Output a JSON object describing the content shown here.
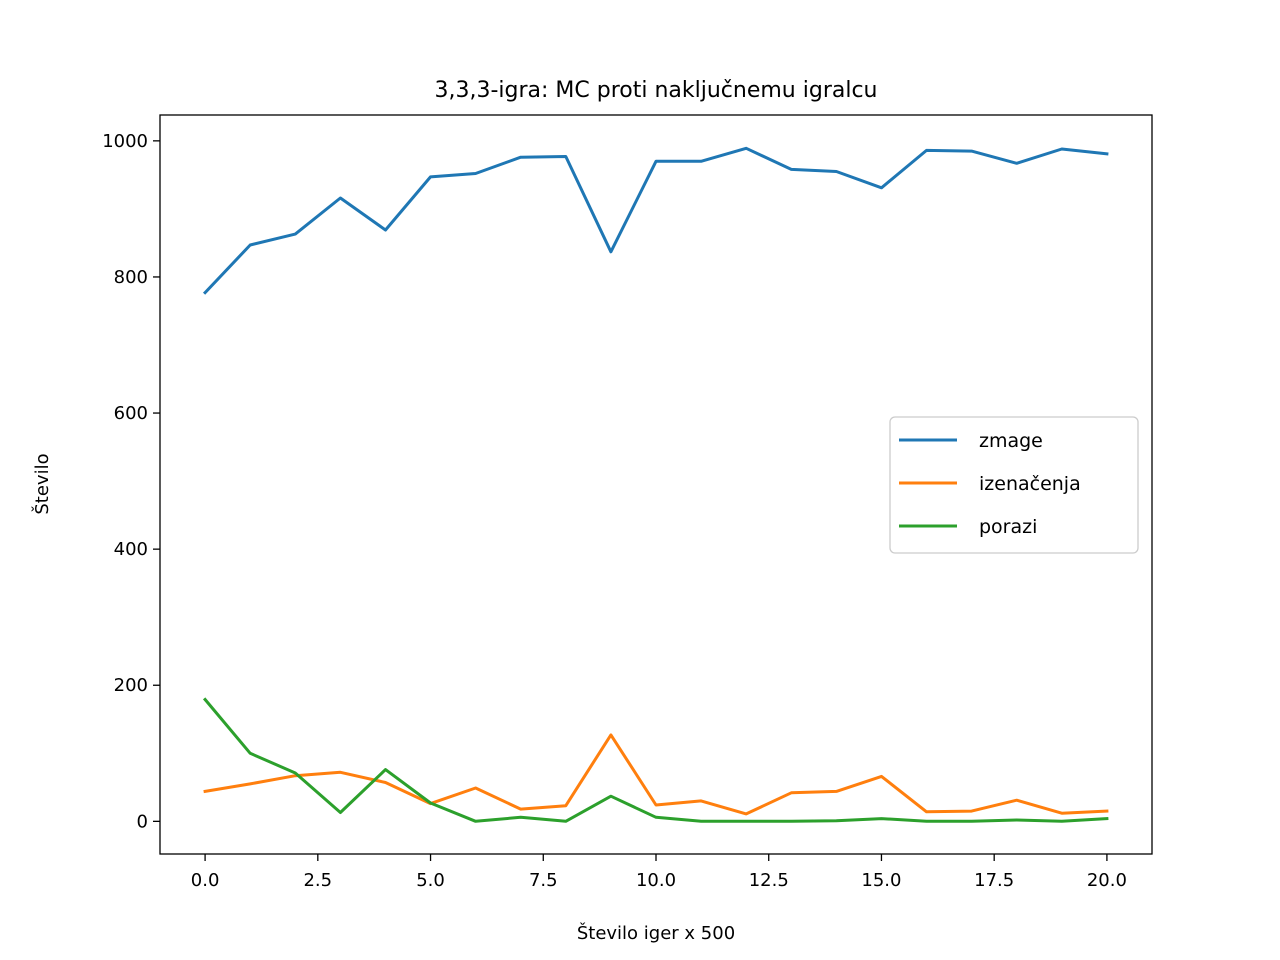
{
  "chart_data": {
    "type": "line",
    "title": "3,3,3-igra: MC proti naključnemu igralcu",
    "xlabel": "Število iger x 500",
    "ylabel": "Število",
    "xlim": [
      -1,
      21
    ],
    "ylim": [
      -48,
      1038
    ],
    "xticks": [
      0,
      2.5,
      5,
      7.5,
      10,
      12.5,
      15,
      17.5,
      20
    ],
    "xtick_labels": [
      "0.0",
      "2.5",
      "5.0",
      "7.5",
      "10.0",
      "12.5",
      "15.0",
      "17.5",
      "20.0"
    ],
    "yticks": [
      0,
      200,
      400,
      600,
      800,
      1000
    ],
    "ytick_labels": [
      "0",
      "200",
      "400",
      "600",
      "800",
      "1000"
    ],
    "grid": false,
    "legend_position": "center-right",
    "x": [
      0,
      1,
      2,
      3,
      4,
      5,
      6,
      7,
      8,
      9,
      10,
      11,
      12,
      13,
      14,
      15,
      16,
      17,
      18,
      19,
      20
    ],
    "series": [
      {
        "name": "zmage",
        "color": "#1f77b4",
        "values": [
          777,
          847,
          863,
          916,
          869,
          947,
          952,
          976,
          977,
          837,
          970,
          970,
          989,
          958,
          955,
          931,
          986,
          985,
          967,
          988,
          981
        ]
      },
      {
        "name": "izenačenja",
        "color": "#ff7f0e",
        "values": [
          44,
          55,
          67,
          72,
          57,
          26,
          49,
          18,
          23,
          127,
          24,
          30,
          11,
          42,
          44,
          66,
          14,
          15,
          31,
          12,
          15
        ]
      },
      {
        "name": "porazi",
        "color": "#2ca02c",
        "values": [
          179,
          100,
          71,
          13,
          76,
          27,
          0,
          6,
          0,
          37,
          6,
          0,
          0,
          0,
          1,
          4,
          0,
          0,
          2,
          0,
          4
        ]
      }
    ]
  }
}
